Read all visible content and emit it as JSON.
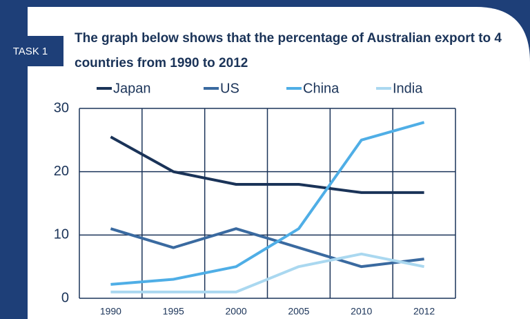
{
  "badge": "TASK 1",
  "chart_data": {
    "type": "line",
    "title": "The graph below shows that the percentage of Australian export to 4 countries from 1990 to 2012",
    "categories": [
      "1990",
      "1995",
      "2000",
      "2005",
      "2010",
      "2012"
    ],
    "series": [
      {
        "name": "Japan",
        "color": "#1a3358",
        "values": [
          25.5,
          20,
          18,
          18,
          16.7,
          16.7
        ]
      },
      {
        "name": "US",
        "color": "#3a6aa0",
        "values": [
          11,
          8,
          11,
          8,
          5,
          6.2
        ]
      },
      {
        "name": "China",
        "color": "#4faee6",
        "values": [
          2.2,
          3,
          5,
          11,
          25,
          27.8
        ]
      },
      {
        "name": "India",
        "color": "#aad8f0",
        "values": [
          1,
          1,
          1,
          5,
          7,
          5
        ]
      }
    ],
    "ylim": [
      0,
      30
    ],
    "yticks": [
      0,
      10,
      20,
      30
    ],
    "grid": true,
    "legend": "top"
  }
}
